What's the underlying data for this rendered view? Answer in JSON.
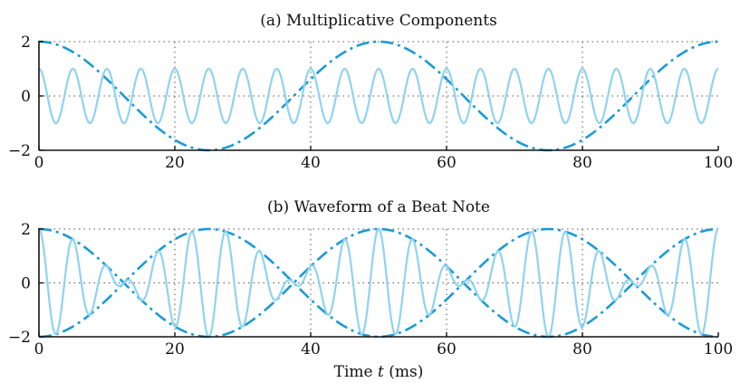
{
  "chart_data": [
    {
      "type": "line",
      "title": "(a) Multiplicative Components",
      "xlabel": "",
      "ylabel": "",
      "xlim": [
        0,
        100
      ],
      "ylim": [
        -2,
        2
      ],
      "x_ticks": [
        0,
        20,
        40,
        60,
        80,
        100
      ],
      "y_ticks": [
        -2,
        0,
        2
      ],
      "grid": true,
      "series": [
        {
          "style": "dashdot",
          "color": "#1a9ad6",
          "formula": "2*cos(2*pi*0.02*t)",
          "x": [
            0,
            12.5,
            25,
            37.5,
            50,
            62.5,
            75,
            87.5,
            100
          ],
          "y": [
            2,
            0,
            -2,
            0,
            2,
            0,
            -2,
            0,
            2
          ]
        },
        {
          "style": "solid",
          "color": "#8fd3f0",
          "formula": "cos(2*pi*0.2*t)",
          "x": [
            0,
            2.5,
            5,
            7.5,
            10,
            12.5,
            15
          ],
          "y": [
            1,
            -1,
            1,
            -1,
            1,
            -1,
            1
          ]
        }
      ]
    },
    {
      "type": "line",
      "title": "(b) Waveform of a Beat Note",
      "xlabel_prefix": "Time ",
      "xlabel_var": "t",
      "xlabel_suffix": " (ms)",
      "xlim": [
        0,
        100
      ],
      "ylim": [
        -2,
        2
      ],
      "x_ticks": [
        0,
        20,
        40,
        60,
        80,
        100
      ],
      "y_ticks": [
        -2,
        0,
        2
      ],
      "grid": true,
      "series": [
        {
          "style": "dashdot",
          "color": "#1a9ad6",
          "formula": "2*cos(2*pi*0.02*t)",
          "x": [
            0,
            12.5,
            25,
            37.5,
            50,
            62.5,
            75,
            87.5,
            100
          ],
          "y": [
            2,
            0,
            -2,
            0,
            2,
            0,
            -2,
            0,
            2
          ]
        },
        {
          "style": "dashdot",
          "color": "#1a9ad6",
          "formula": "-2*cos(2*pi*0.02*t)",
          "x": [
            0,
            12.5,
            25,
            37.5,
            50,
            62.5,
            75,
            87.5,
            100
          ],
          "y": [
            -2,
            0,
            2,
            0,
            -2,
            0,
            2,
            0,
            -2
          ]
        },
        {
          "style": "solid",
          "color": "#8fd3f0",
          "formula": "2*cos(2*pi*0.02*t)*cos(2*pi*0.2*t)",
          "x": [
            0,
            12.5,
            25,
            37.5,
            50
          ],
          "y": [
            2,
            0,
            -2,
            0,
            2
          ]
        }
      ]
    }
  ]
}
